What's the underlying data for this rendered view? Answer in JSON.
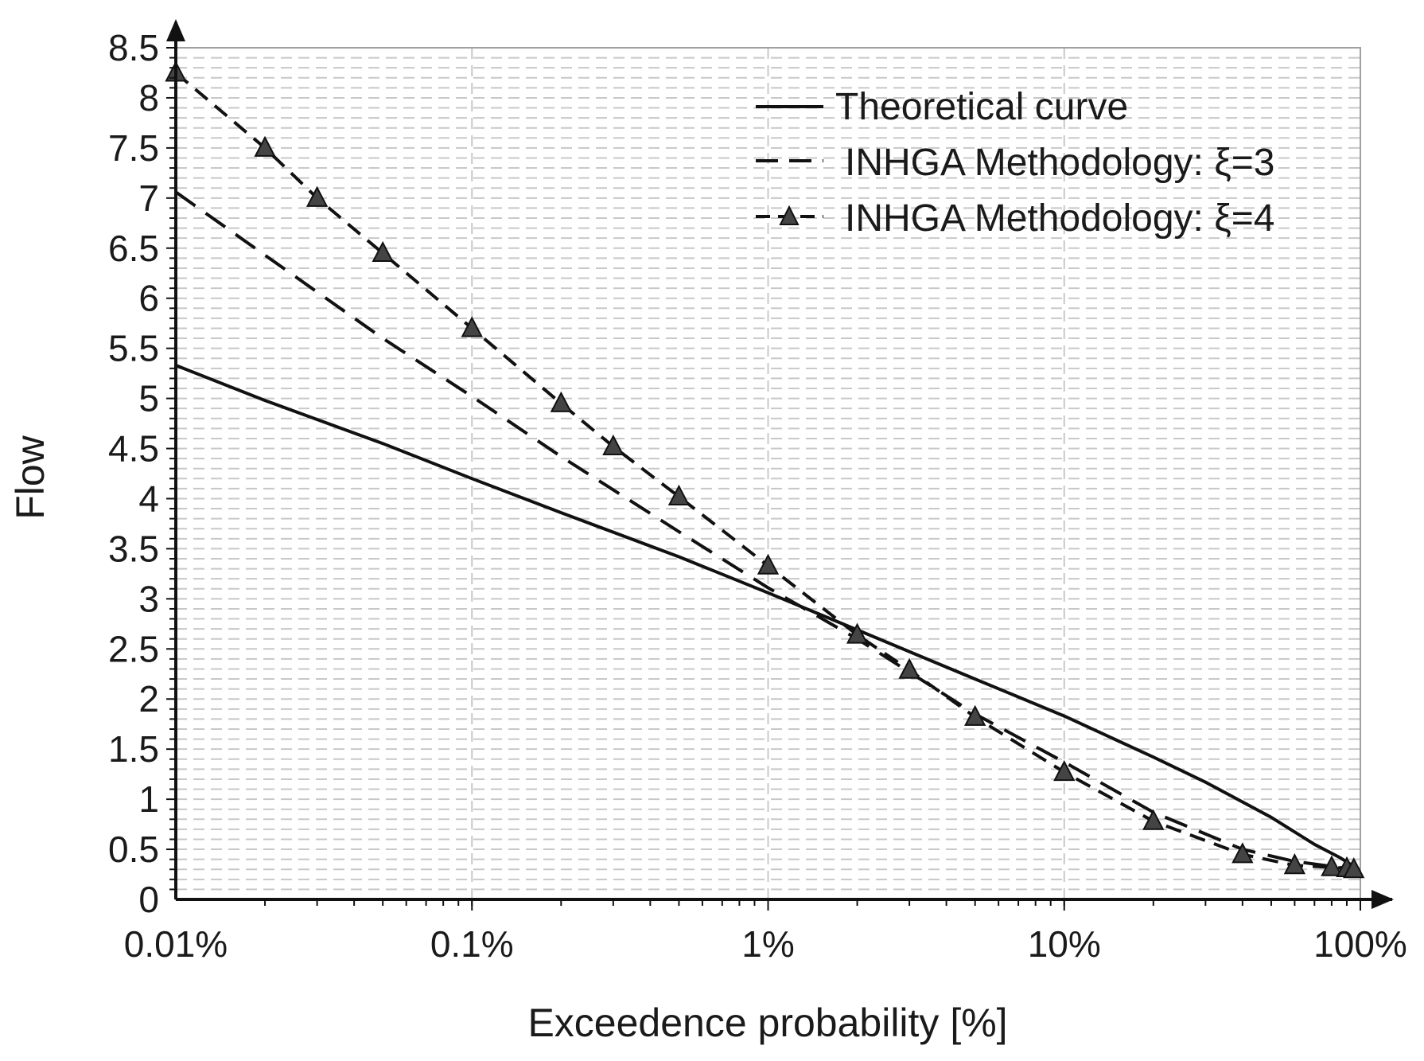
{
  "chart_data": {
    "type": "line",
    "title": "",
    "xlabel": "Exceedence probability [%]",
    "ylabel": "Flow",
    "x_scale": "log",
    "xlim": [
      0.01,
      100
    ],
    "ylim": [
      0,
      8.5
    ],
    "x_ticks": [
      {
        "value": 0.01,
        "label": "0.01%"
      },
      {
        "value": 0.1,
        "label": "0.1%"
      },
      {
        "value": 1,
        "label": "1%"
      },
      {
        "value": 10,
        "label": "10%"
      },
      {
        "value": 100,
        "label": "100%"
      }
    ],
    "y_ticks": [
      {
        "value": 0,
        "label": "0"
      },
      {
        "value": 0.5,
        "label": "0.5"
      },
      {
        "value": 1,
        "label": "1"
      },
      {
        "value": 1.5,
        "label": "1.5"
      },
      {
        "value": 2,
        "label": "2"
      },
      {
        "value": 2.5,
        "label": "2.5"
      },
      {
        "value": 3,
        "label": "3"
      },
      {
        "value": 3.5,
        "label": "3.5"
      },
      {
        "value": 4,
        "label": "4"
      },
      {
        "value": 4.5,
        "label": "4.5"
      },
      {
        "value": 5,
        "label": "5"
      },
      {
        "value": 5.5,
        "label": "5.5"
      },
      {
        "value": 6,
        "label": "6"
      },
      {
        "value": 6.5,
        "label": "6.5"
      },
      {
        "value": 7,
        "label": "7"
      },
      {
        "value": 7.5,
        "label": "7.5"
      },
      {
        "value": 8,
        "label": "8"
      },
      {
        "value": 8.5,
        "label": "8.5"
      }
    ],
    "grid": true,
    "legend_position": "top-right",
    "series": [
      {
        "name": "Theoretical curve",
        "style": "solid",
        "marker": "none",
        "x": [
          0.01,
          0.02,
          0.05,
          0.1,
          0.2,
          0.5,
          1,
          2,
          5,
          10,
          20,
          30,
          50,
          70,
          85,
          95,
          99
        ],
        "y": [
          5.33,
          4.98,
          4.55,
          4.2,
          3.86,
          3.42,
          3.06,
          2.69,
          2.2,
          1.83,
          1.42,
          1.17,
          0.82,
          0.55,
          0.42,
          0.33,
          0.3
        ]
      },
      {
        "name": "INHGA Methodology: ξ=3",
        "style": "dashed",
        "marker": "none",
        "x": [
          0.01,
          0.02,
          0.05,
          0.1,
          0.2,
          0.5,
          1,
          2,
          5,
          10,
          20,
          40,
          60,
          80,
          95,
          99
        ],
        "y": [
          7.06,
          6.43,
          5.6,
          5.02,
          4.42,
          3.67,
          3.11,
          2.6,
          1.85,
          1.37,
          0.87,
          0.5,
          0.38,
          0.33,
          0.3,
          0.28
        ]
      },
      {
        "name": "INHGA Methodology: ξ=4",
        "style": "dashed",
        "marker": "triangle",
        "x": [
          0.01,
          0.02,
          0.03,
          0.05,
          0.1,
          0.2,
          0.3,
          0.5,
          1,
          2,
          3,
          5,
          10,
          20,
          40,
          60,
          80,
          90,
          95
        ],
        "y": [
          8.25,
          7.5,
          7.0,
          6.45,
          5.7,
          4.95,
          4.52,
          4.02,
          3.33,
          2.64,
          2.29,
          1.82,
          1.27,
          0.78,
          0.45,
          0.34,
          0.32,
          0.31,
          0.3
        ]
      }
    ]
  },
  "colors": {
    "axis": "#111111",
    "grid": "#c8c8c8",
    "series": [
      "#111111",
      "#111111",
      "#111111"
    ],
    "marker_fill": "#444444",
    "plot_border": "#a0a0a0"
  }
}
